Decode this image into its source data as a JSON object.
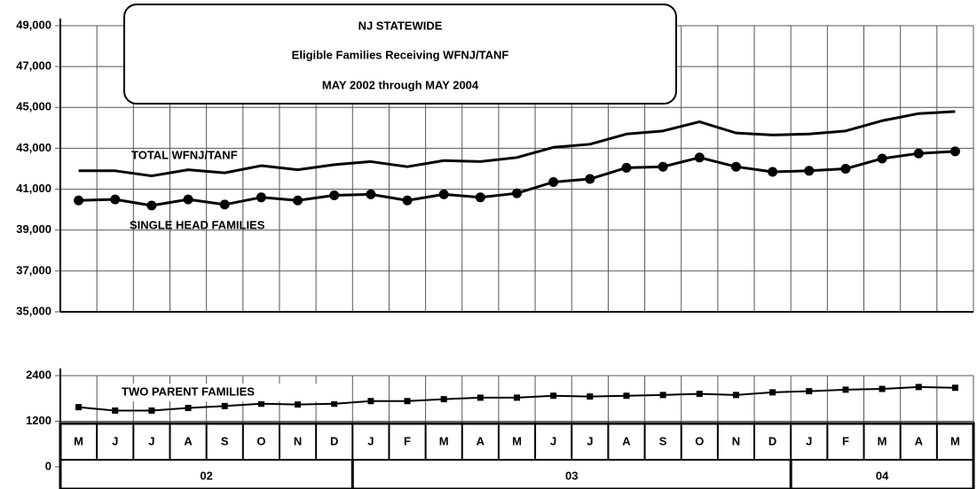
{
  "chart_data": [
    {
      "type": "line",
      "title": "NJ STATEWIDE",
      "subtitle": "Eligible Families Receiving WFNJ/TANF",
      "date_range": "MAY 2002 through MAY 2004",
      "ylim": [
        35000,
        49000
      ],
      "yticks": [
        {
          "value": 35000,
          "label": "35,000"
        },
        {
          "value": 37000,
          "label": "37,000"
        },
        {
          "value": 39000,
          "label": "39,000"
        },
        {
          "value": 41000,
          "label": "41,000"
        },
        {
          "value": 43000,
          "label": "43,000"
        },
        {
          "value": 45000,
          "label": "45,000"
        },
        {
          "value": 47000,
          "label": "47,000"
        },
        {
          "value": 49000,
          "label": "49,000"
        }
      ],
      "grid": true,
      "series": [
        {
          "name": "TOTAL WFNJ/TANF",
          "color": "#000000",
          "marker": "none",
          "values": [
            41900,
            41900,
            41650,
            41950,
            41800,
            42150,
            41950,
            42200,
            42350,
            42100,
            42400,
            42350,
            42550,
            43050,
            43200,
            43700,
            43850,
            44300,
            43750,
            43650,
            43700,
            43850,
            44350,
            44700,
            44800
          ]
        },
        {
          "name": "SINGLE HEAD FAMILIES",
          "color": "#000000",
          "marker": "circle",
          "values": [
            40450,
            40500,
            40200,
            40500,
            40250,
            40600,
            40450,
            40700,
            40750,
            40450,
            40750,
            40600,
            40800,
            41350,
            41500,
            42050,
            42100,
            42550,
            42100,
            41850,
            41900,
            42000,
            42500,
            42750,
            42850
          ]
        }
      ]
    },
    {
      "type": "line",
      "categories": [
        "M",
        "J",
        "J",
        "A",
        "S",
        "O",
        "N",
        "D",
        "J",
        "F",
        "M",
        "A",
        "M",
        "J",
        "J",
        "A",
        "S",
        "O",
        "N",
        "D",
        "J",
        "F",
        "M",
        "A",
        "M"
      ],
      "year_groups": [
        {
          "label": "02",
          "months": 8
        },
        {
          "label": "03",
          "months": 12
        },
        {
          "label": "04",
          "months": 5
        }
      ],
      "ylim": [
        0,
        2400
      ],
      "yticks": [
        0,
        1200,
        2400
      ],
      "grid": true,
      "series": [
        {
          "name": "TWO PARENT FAMILIES",
          "color": "#000000",
          "marker": "square",
          "values": [
            1570,
            1480,
            1480,
            1550,
            1600,
            1660,
            1640,
            1660,
            1730,
            1730,
            1780,
            1820,
            1820,
            1870,
            1850,
            1870,
            1890,
            1920,
            1890,
            1960,
            1990,
            2030,
            2050,
            2100,
            2080
          ]
        }
      ]
    }
  ]
}
